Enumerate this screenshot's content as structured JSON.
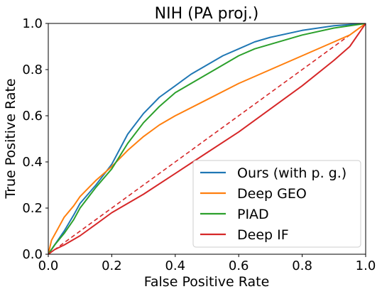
{
  "chart_data": {
    "type": "line",
    "title": "NIH (PA proj.)",
    "xlabel": "False Positive Rate",
    "ylabel": "True Positive Rate",
    "xlim": [
      0.0,
      1.0
    ],
    "ylim": [
      0.0,
      1.0
    ],
    "xticks": [
      "0.0",
      "0.2",
      "0.4",
      "0.6",
      "0.8",
      "1.0"
    ],
    "yticks": [
      "0.0",
      "0.2",
      "0.4",
      "0.6",
      "0.8",
      "1.0"
    ],
    "grid": false,
    "legend_position": "lower-right",
    "series": [
      {
        "name": "Ours (with p. g.)",
        "color": "#1f77b4",
        "x": [
          0.0,
          0.02,
          0.05,
          0.08,
          0.1,
          0.15,
          0.2,
          0.25,
          0.3,
          0.35,
          0.4,
          0.45,
          0.5,
          0.55,
          0.6,
          0.65,
          0.7,
          0.8,
          0.9,
          1.0
        ],
        "y": [
          0.0,
          0.04,
          0.1,
          0.17,
          0.22,
          0.3,
          0.39,
          0.52,
          0.61,
          0.68,
          0.73,
          0.78,
          0.82,
          0.86,
          0.89,
          0.92,
          0.94,
          0.97,
          0.99,
          1.0
        ]
      },
      {
        "name": "Deep GEO",
        "color": "#ff7f0e",
        "x": [
          0.0,
          0.01,
          0.03,
          0.05,
          0.08,
          0.1,
          0.15,
          0.2,
          0.25,
          0.3,
          0.35,
          0.4,
          0.5,
          0.6,
          0.7,
          0.8,
          0.9,
          0.95,
          1.0
        ],
        "y": [
          0.0,
          0.06,
          0.11,
          0.16,
          0.21,
          0.25,
          0.32,
          0.38,
          0.45,
          0.51,
          0.56,
          0.6,
          0.67,
          0.74,
          0.8,
          0.86,
          0.92,
          0.95,
          1.0
        ]
      },
      {
        "name": "PIAD",
        "color": "#2ca02c",
        "x": [
          0.0,
          0.02,
          0.05,
          0.08,
          0.1,
          0.15,
          0.2,
          0.25,
          0.3,
          0.35,
          0.4,
          0.45,
          0.5,
          0.55,
          0.6,
          0.65,
          0.7,
          0.8,
          0.9,
          1.0
        ],
        "y": [
          0.0,
          0.04,
          0.09,
          0.15,
          0.2,
          0.29,
          0.37,
          0.48,
          0.57,
          0.64,
          0.7,
          0.74,
          0.78,
          0.82,
          0.86,
          0.89,
          0.91,
          0.95,
          0.98,
          1.0
        ]
      },
      {
        "name": "Deep IF",
        "color": "#d62728",
        "x": [
          0.0,
          0.02,
          0.05,
          0.1,
          0.15,
          0.2,
          0.3,
          0.4,
          0.5,
          0.6,
          0.7,
          0.8,
          0.9,
          0.95,
          1.0
        ],
        "y": [
          0.0,
          0.02,
          0.04,
          0.08,
          0.13,
          0.18,
          0.26,
          0.35,
          0.44,
          0.53,
          0.63,
          0.73,
          0.84,
          0.9,
          1.0
        ]
      }
    ],
    "reference_line": {
      "color": "#d62728",
      "style": "dashed",
      "x": [
        0.0,
        1.0
      ],
      "y": [
        0.0,
        1.0
      ]
    }
  }
}
